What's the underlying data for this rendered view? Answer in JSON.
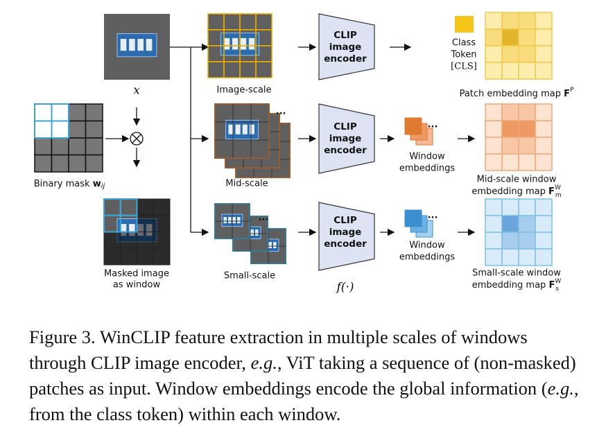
{
  "input": {
    "symbol": "x"
  },
  "mask": {
    "label": "Binary mask",
    "symbol": "w",
    "sub": "ij"
  },
  "masked_image": {
    "lines": [
      "Masked image",
      "as window"
    ]
  },
  "scales": {
    "image": "Image-scale",
    "mid": "Mid-scale",
    "small": "Small-scale",
    "ellipsis": "..."
  },
  "encoder": {
    "lines": [
      "CLIP",
      "image",
      "encoder"
    ],
    "function": "f(·)"
  },
  "class_token": {
    "lines": [
      "Class",
      "Token",
      "[CLS]"
    ]
  },
  "patch_map": {
    "label": "Patch embedding map",
    "symbol": "F",
    "sup": "P"
  },
  "window_embeddings": {
    "lines": [
      "Window",
      "embeddings"
    ]
  },
  "mid_map": {
    "lines": [
      "Mid-scale window",
      "embedding map"
    ],
    "symbol": "F",
    "sub": "m",
    "sup": "W"
  },
  "small_map": {
    "lines": [
      "Small-scale window",
      "embedding map"
    ],
    "symbol": "F",
    "sub": "s",
    "sup": "W"
  },
  "caption": [
    "Figure 3. WinCLIP feature extraction in multiple scales of windows through CLIP image encoder, ",
    "e.g.",
    ", ViT taking a sequence of (non-masked) patches as input. Window embeddings encode the global information (",
    "e.g.",
    ", from the class token) within each window."
  ]
}
